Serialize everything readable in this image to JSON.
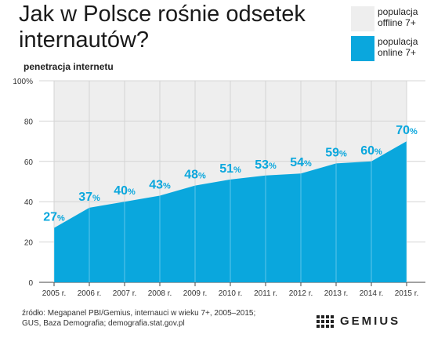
{
  "title": "Jak w Polsce rośnie odsetek internautów?",
  "legend": [
    {
      "label": "populacja offline 7+",
      "color": "#eeeeee"
    },
    {
      "label": "populacja online 7+",
      "color": "#0aa7dd"
    }
  ],
  "source": "źródło: Megapanel PBI/Gemius, internauci w wieku 7+, 2005–2015; GUS, Baza Demografia; demografia.stat.gov.pl",
  "logo": "GEMIUS",
  "chart_data": {
    "type": "area",
    "ylabel": "penetracja internetu",
    "x": [
      "2005 r.",
      "2006 r.",
      "2007 r.",
      "2008 r.",
      "2009 r.",
      "2010 r.",
      "2011 r.",
      "2012 r.",
      "2013 r.",
      "2014 r.",
      "2015 r."
    ],
    "series": [
      {
        "name": "populacja online 7+",
        "values": [
          27,
          37,
          40,
          43,
          48,
          51,
          53,
          54,
          59,
          60,
          70
        ]
      }
    ],
    "yticks": [
      "0",
      "20",
      "40",
      "60",
      "80",
      "100%"
    ],
    "ylim": [
      0,
      100
    ],
    "value_suffix": "%",
    "grid": true,
    "colors": {
      "online": "#0aa7dd",
      "offline": "#eeeeee",
      "label": "#0aa7dd"
    }
  }
}
